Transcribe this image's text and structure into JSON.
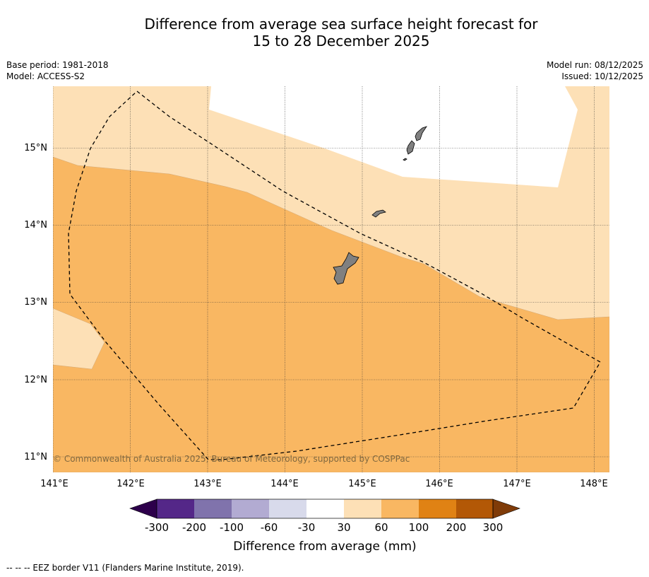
{
  "title": {
    "line1": "Difference from average sea surface height forecast for",
    "line2": "15 to 28 December 2025"
  },
  "meta_left": {
    "base_period": "Base period: 1981-2018",
    "model": "Model: ACCESS-S2"
  },
  "meta_right": {
    "model_run": "Model run: 08/12/2025",
    "issued": "Issued: 10/12/2025"
  },
  "map": {
    "lon_range": [
      141,
      148.2
    ],
    "lat_range": [
      10.8,
      15.8
    ],
    "lon_ticks": [
      "141°E",
      "142°E",
      "143°E",
      "144°E",
      "145°E",
      "146°E",
      "147°E",
      "148°E"
    ],
    "lat_ticks": [
      "15°N",
      "14°N",
      "13°N",
      "12°N",
      "11°N"
    ],
    "copyright": "© Commonwealth of Australia 2025, Bureau of Meteorology, supported by COSPPac",
    "colors": {
      "band_30_60": "#fde0b6",
      "band_60_100": "#f9b762",
      "land": "#808080"
    }
  },
  "colorbar": {
    "title": "Difference from average (mm)",
    "tick_labels": [
      "-300",
      "-200",
      "-100",
      "-60",
      "-30",
      "30",
      "60",
      "100",
      "200",
      "300"
    ],
    "colors": [
      "#2d004b",
      "#542788",
      "#8073ac",
      "#b2abd2",
      "#d8daeb",
      "#ffffff",
      "#fde0b6",
      "#f9b762",
      "#e08214",
      "#b35806",
      "#7f3b08"
    ]
  },
  "footer": "--  --  -- EEZ border V11 (Flanders Marine Institute, 2019)."
}
